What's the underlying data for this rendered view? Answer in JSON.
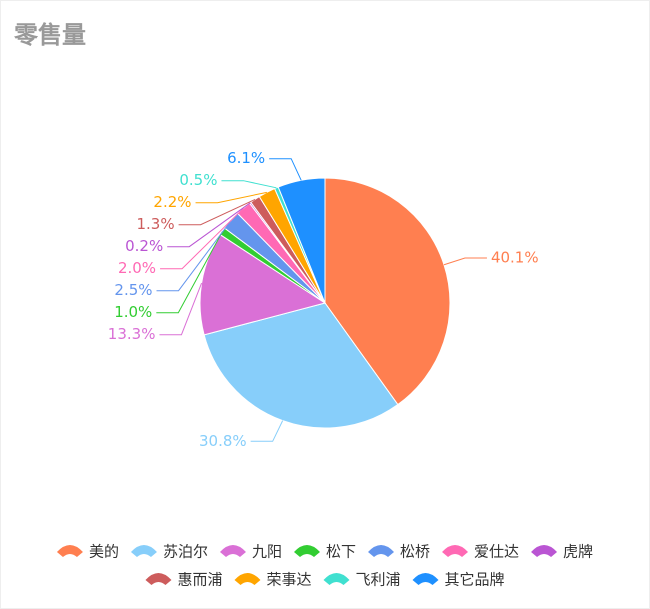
{
  "chart_data": {
    "type": "pie",
    "title": "零售量",
    "categories": [
      "美的",
      "苏泊尔",
      "九阳",
      "松下",
      "松桥",
      "爱仕达",
      "虎牌",
      "惠而浦",
      "荣事达",
      "飞利浦",
      "其它品牌"
    ],
    "values": [
      40.1,
      30.8,
      13.3,
      1.0,
      2.5,
      2.0,
      0.2,
      1.3,
      2.2,
      0.5,
      6.1
    ],
    "value_labels": [
      "40.1%",
      "30.8%",
      "13.3%",
      "1.0%",
      "2.5%",
      "2.0%",
      "0.2%",
      "1.3%",
      "2.2%",
      "0.5%",
      "6.1%"
    ],
    "colors": [
      "#ff7f50",
      "#87cefa",
      "#da70d6",
      "#32cd32",
      "#6495ed",
      "#ff69b4",
      "#ba55d3",
      "#cd5c5c",
      "#ffa500",
      "#40e0d0",
      "#1e90ff"
    ]
  }
}
